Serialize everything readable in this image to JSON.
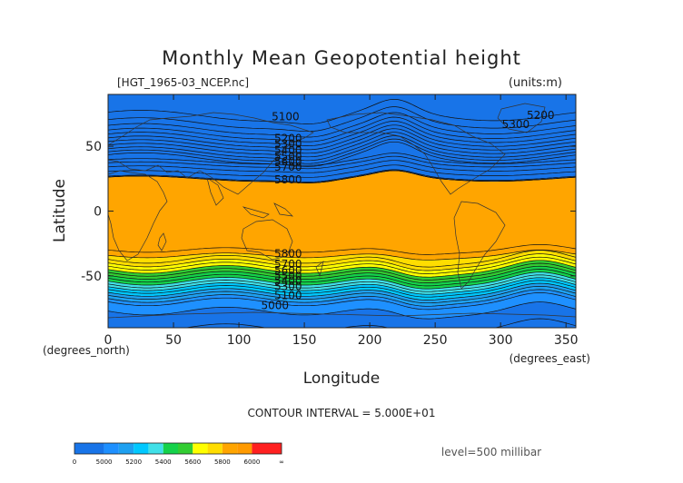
{
  "chart_data": {
    "type": "heatmap",
    "title": "Monthly Mean Geopotential height",
    "file_label": "[HGT_1965-03_NCEP.nc]",
    "units_label": "(units:m)",
    "xlabel": "Longitude",
    "ylabel": "Latitude",
    "x_unit_label": "(degrees_east)",
    "y_unit_label": "(degrees_north)",
    "xlim": [
      0,
      357.5
    ],
    "ylim": [
      -90,
      90
    ],
    "x_ticks": [
      0,
      50,
      100,
      150,
      200,
      250,
      300,
      350
    ],
    "y_ticks": [
      -50,
      0,
      50
    ],
    "contour_interval_text": "CONTOUR INTERVAL = 5.000E+01",
    "level_text": "level=500 millibar",
    "colorbar": {
      "labels": [
        "0",
        "5000",
        "5200",
        "5400",
        "5600",
        "5800",
        "6000",
        "∞"
      ],
      "bins": [
        {
          "lo": 0,
          "hi": 5000,
          "color": "#1874e8"
        },
        {
          "lo": 5000,
          "hi": 5100,
          "color": "#1e90ff"
        },
        {
          "lo": 5100,
          "hi": 5200,
          "color": "#1ea0f0"
        },
        {
          "lo": 5200,
          "hi": 5300,
          "color": "#00c8ff"
        },
        {
          "lo": 5300,
          "hi": 5400,
          "color": "#40e0e8"
        },
        {
          "lo": 5400,
          "hi": 5500,
          "color": "#14d24a"
        },
        {
          "lo": 5500,
          "hi": 5600,
          "color": "#32cd32"
        },
        {
          "lo": 5600,
          "hi": 5700,
          "color": "#ffff00"
        },
        {
          "lo": 5700,
          "hi": 5800,
          "color": "#ffdd00"
        },
        {
          "lo": 5800,
          "hi": 5900,
          "color": "#ffa500"
        },
        {
          "lo": 5900,
          "hi": 6000,
          "color": "#ff9a00"
        },
        {
          "lo": 6000,
          "hi": 99999,
          "color": "#ff2020"
        }
      ]
    },
    "contour_labels": [
      {
        "text": "5100",
        "lon": 125,
        "lat": 73
      },
      {
        "text": "5200",
        "lon": 127,
        "lat": 56
      },
      {
        "text": "5300",
        "lon": 127,
        "lat": 52
      },
      {
        "text": "5400",
        "lon": 127,
        "lat": 47
      },
      {
        "text": "5500",
        "lon": 127,
        "lat": 42
      },
      {
        "text": "5600",
        "lon": 127,
        "lat": 38
      },
      {
        "text": "5700",
        "lon": 127,
        "lat": 34
      },
      {
        "text": "5800",
        "lon": 127,
        "lat": 24
      },
      {
        "text": "5800",
        "lon": 127,
        "lat": -33
      },
      {
        "text": "5700",
        "lon": 127,
        "lat": -41
      },
      {
        "text": "5600",
        "lon": 127,
        "lat": -46
      },
      {
        "text": "5500",
        "lon": 127,
        "lat": -50
      },
      {
        "text": "5400",
        "lon": 127,
        "lat": -54
      },
      {
        "text": "5300",
        "lon": 127,
        "lat": -58
      },
      {
        "text": "5100",
        "lon": 127,
        "lat": -65
      },
      {
        "text": "5000",
        "lon": 117,
        "lat": -73
      },
      {
        "text": "5300",
        "lon": 301,
        "lat": 67
      },
      {
        "text": "5200",
        "lon": 320,
        "lat": 74
      }
    ],
    "profile_south": {
      "comment_free": true,
      "lat": [
        -90,
        -80,
        -70,
        -65,
        -60,
        -55,
        -50,
        -45,
        -40,
        -35,
        -30,
        -25
      ],
      "z": [
        4950,
        4980,
        5050,
        5150,
        5260,
        5380,
        5490,
        5600,
        5700,
        5790,
        5850,
        5880
      ]
    },
    "profile_north": {
      "lat": [
        25,
        30,
        35,
        40,
        45,
        50,
        55,
        60,
        65,
        70,
        75,
        80,
        90
      ],
      "z": [
        5860,
        5790,
        5720,
        5620,
        5510,
        5420,
        5330,
        5250,
        5180,
        5130,
        5090,
        5070,
        5060
      ]
    }
  }
}
